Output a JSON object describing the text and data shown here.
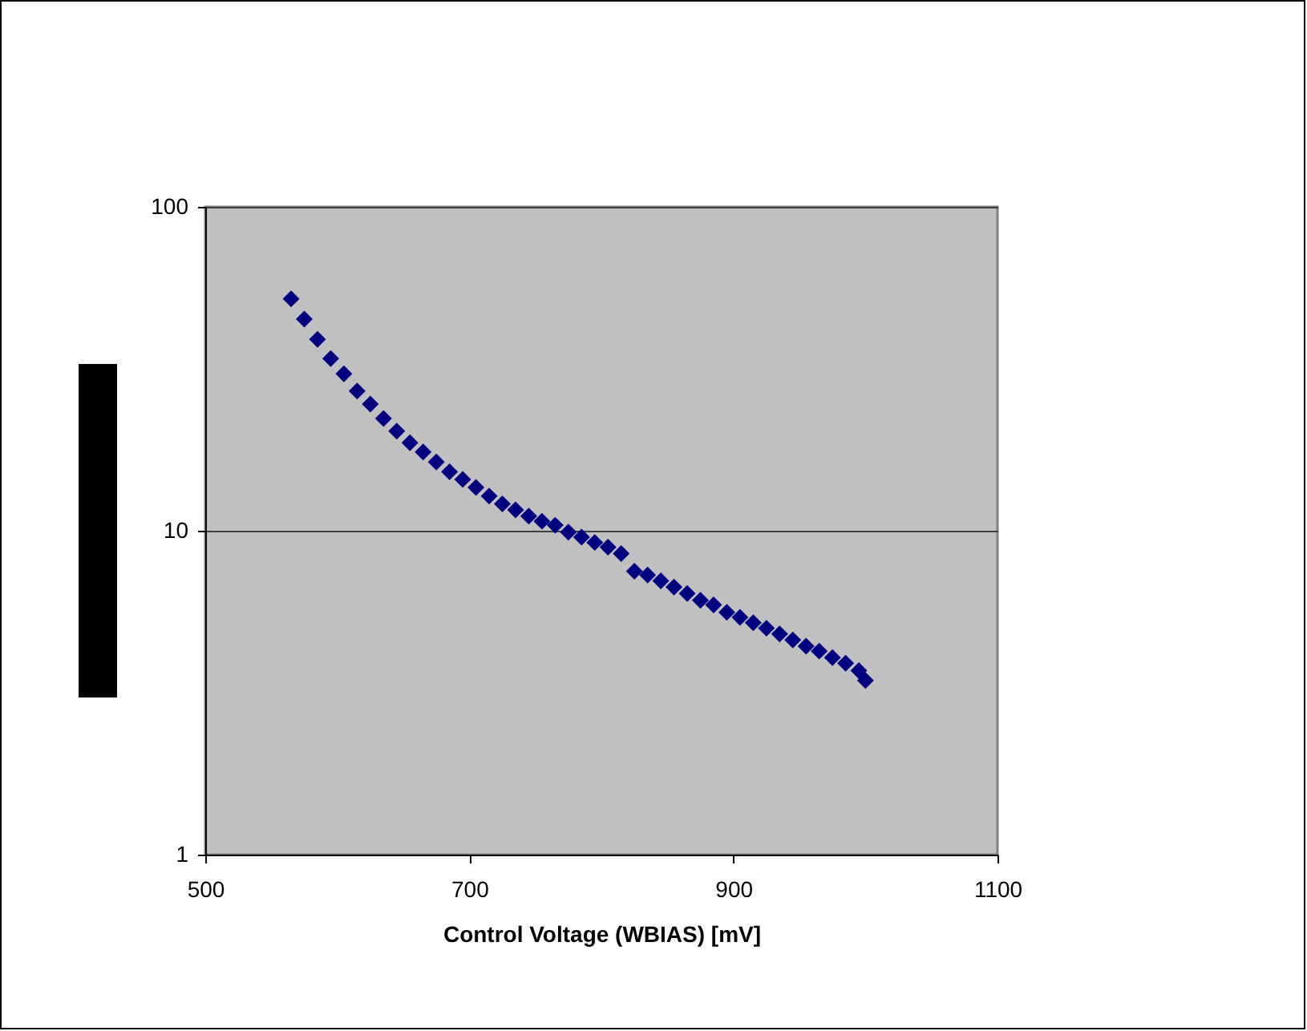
{
  "chart_data": {
    "type": "scatter",
    "xlabel": "Control Voltage (WBIAS) [mV]",
    "log": "y",
    "grid": "y",
    "marker": "diamond",
    "xlim": [
      500,
      1100
    ],
    "xticks": [
      500,
      700,
      900,
      1100
    ],
    "ylim": [
      1,
      100
    ],
    "yticks": [
      1,
      10,
      100
    ],
    "series": [
      {
        "color": "#000080",
        "x": [
          565,
          575,
          585,
          595,
          605,
          615,
          625,
          635,
          645,
          655,
          665,
          675,
          685,
          695,
          705,
          715,
          725,
          735,
          745,
          755,
          765,
          775,
          785,
          795,
          805,
          815,
          825,
          835,
          845,
          855,
          865,
          875,
          885,
          895,
          905,
          915,
          925,
          935,
          945,
          955,
          965,
          975,
          985,
          995,
          1000
        ],
        "values": [
          52,
          45,
          39,
          34,
          30.5,
          27,
          24.6,
          22.2,
          20.3,
          18.7,
          17.5,
          16.3,
          15.2,
          14.4,
          13.6,
          12.8,
          12.1,
          11.6,
          11.1,
          10.7,
          10.4,
          9.9,
          9.55,
          9.2,
          8.9,
          8.5,
          7.5,
          7.3,
          7.0,
          6.7,
          6.4,
          6.1,
          5.9,
          5.6,
          5.4,
          5.2,
          5.0,
          4.8,
          4.6,
          4.4,
          4.25,
          4.06,
          3.9,
          3.7,
          3.45
        ]
      }
    ]
  }
}
